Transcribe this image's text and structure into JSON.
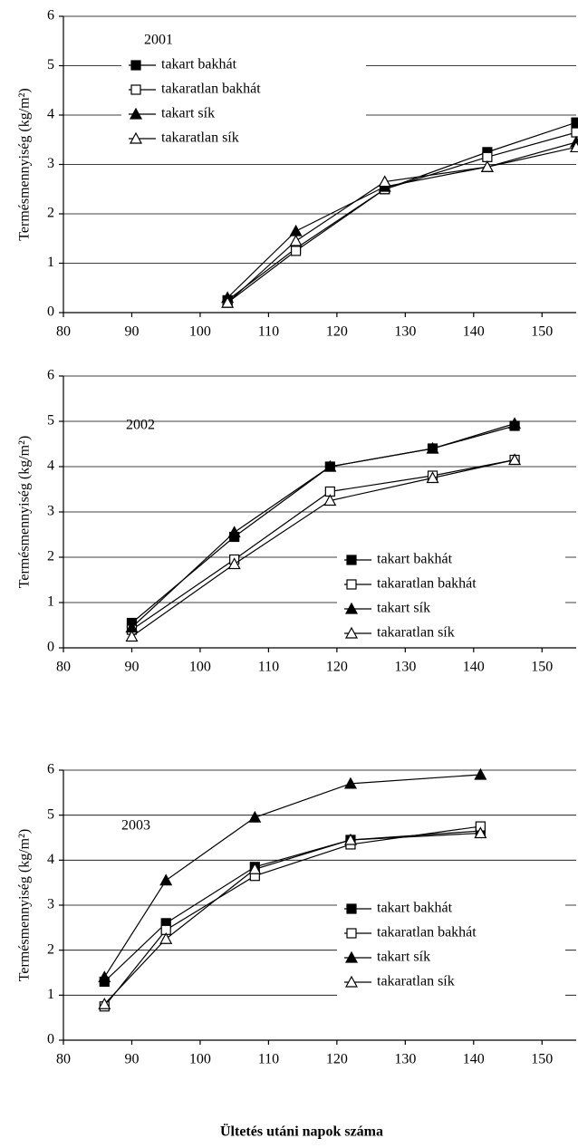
{
  "chart_data": [
    {
      "type": "line",
      "annotation": "2001",
      "y_label": "Termésmennyiség (kg/m²)",
      "x": [
        104,
        114,
        127,
        142,
        155
      ],
      "xlim": [
        80,
        155
      ],
      "xticks": [
        80,
        90,
        100,
        110,
        120,
        130,
        140,
        150
      ],
      "ylim": [
        0,
        6
      ],
      "yticks": [
        0,
        1,
        2,
        3,
        4,
        5,
        6
      ],
      "grid": true,
      "legend": "upper left",
      "series": [
        {
          "name": "takart bakhát",
          "color": "#000000",
          "marker": "square",
          "filled": true,
          "values": [
            0.25,
            1.3,
            2.5,
            3.25,
            3.85
          ]
        },
        {
          "name": "takaratlan bakhát",
          "color": "#000000",
          "marker": "square",
          "filled": false,
          "values": [
            0.2,
            1.25,
            2.5,
            3.15,
            3.65
          ]
        },
        {
          "name": "takart sík",
          "color": "#000000",
          "marker": "triangle",
          "filled": true,
          "values": [
            0.3,
            1.65,
            2.55,
            2.95,
            3.45
          ]
        },
        {
          "name": "takaratlan sík",
          "color": "#000000",
          "marker": "triangle",
          "filled": false,
          "values": [
            0.2,
            1.45,
            2.65,
            2.95,
            3.35
          ]
        }
      ]
    },
    {
      "type": "line",
      "annotation": "2002",
      "y_label": "Termésmennyiség (kg/m²)",
      "x": [
        90,
        105,
        119,
        134,
        146
      ],
      "xlim": [
        80,
        155
      ],
      "xticks": [
        80,
        90,
        100,
        110,
        120,
        130,
        140,
        150
      ],
      "ylim": [
        0,
        6
      ],
      "yticks": [
        0,
        1,
        2,
        3,
        4,
        5,
        6
      ],
      "grid": true,
      "legend": "lower right",
      "series": [
        {
          "name": "takart bakhát",
          "color": "#000000",
          "marker": "square",
          "filled": true,
          "values": [
            0.55,
            2.45,
            4.0,
            4.4,
            4.9
          ]
        },
        {
          "name": "takaratlan bakhát",
          "color": "#000000",
          "marker": "square",
          "filled": false,
          "values": [
            0.4,
            1.95,
            3.45,
            3.8,
            4.15
          ]
        },
        {
          "name": "takart sík",
          "color": "#000000",
          "marker": "triangle",
          "filled": true,
          "values": [
            0.45,
            2.55,
            4.0,
            4.4,
            4.95
          ]
        },
        {
          "name": "takaratlan sík",
          "color": "#000000",
          "marker": "triangle",
          "filled": false,
          "values": [
            0.25,
            1.85,
            3.25,
            3.75,
            4.15
          ]
        }
      ]
    },
    {
      "type": "line",
      "annotation": "2003",
      "y_label": "Termésmennyiség (kg/m²)",
      "x_label": "Ültetés utáni napok száma",
      "x": [
        86,
        95,
        108,
        122,
        141
      ],
      "xlim": [
        80,
        155
      ],
      "xticks": [
        80,
        90,
        100,
        110,
        120,
        130,
        140,
        150
      ],
      "ylim": [
        0,
        6
      ],
      "yticks": [
        0,
        1,
        2,
        3,
        4,
        5,
        6
      ],
      "grid": true,
      "legend": "lower right",
      "series": [
        {
          "name": "takart bakhát",
          "color": "#000000",
          "marker": "square",
          "filled": true,
          "values": [
            1.3,
            2.6,
            3.85,
            4.45,
            4.65
          ]
        },
        {
          "name": "takaratlan bakhát",
          "color": "#000000",
          "marker": "square",
          "filled": false,
          "values": [
            0.75,
            2.45,
            3.65,
            4.35,
            4.75
          ]
        },
        {
          "name": "takart sík",
          "color": "#000000",
          "marker": "triangle",
          "filled": true,
          "values": [
            1.4,
            3.55,
            4.95,
            5.7,
            5.9
          ]
        },
        {
          "name": "takaratlan sík",
          "color": "#000000",
          "marker": "triangle",
          "filled": false,
          "values": [
            0.8,
            2.25,
            3.8,
            4.45,
            4.6
          ]
        }
      ]
    }
  ]
}
